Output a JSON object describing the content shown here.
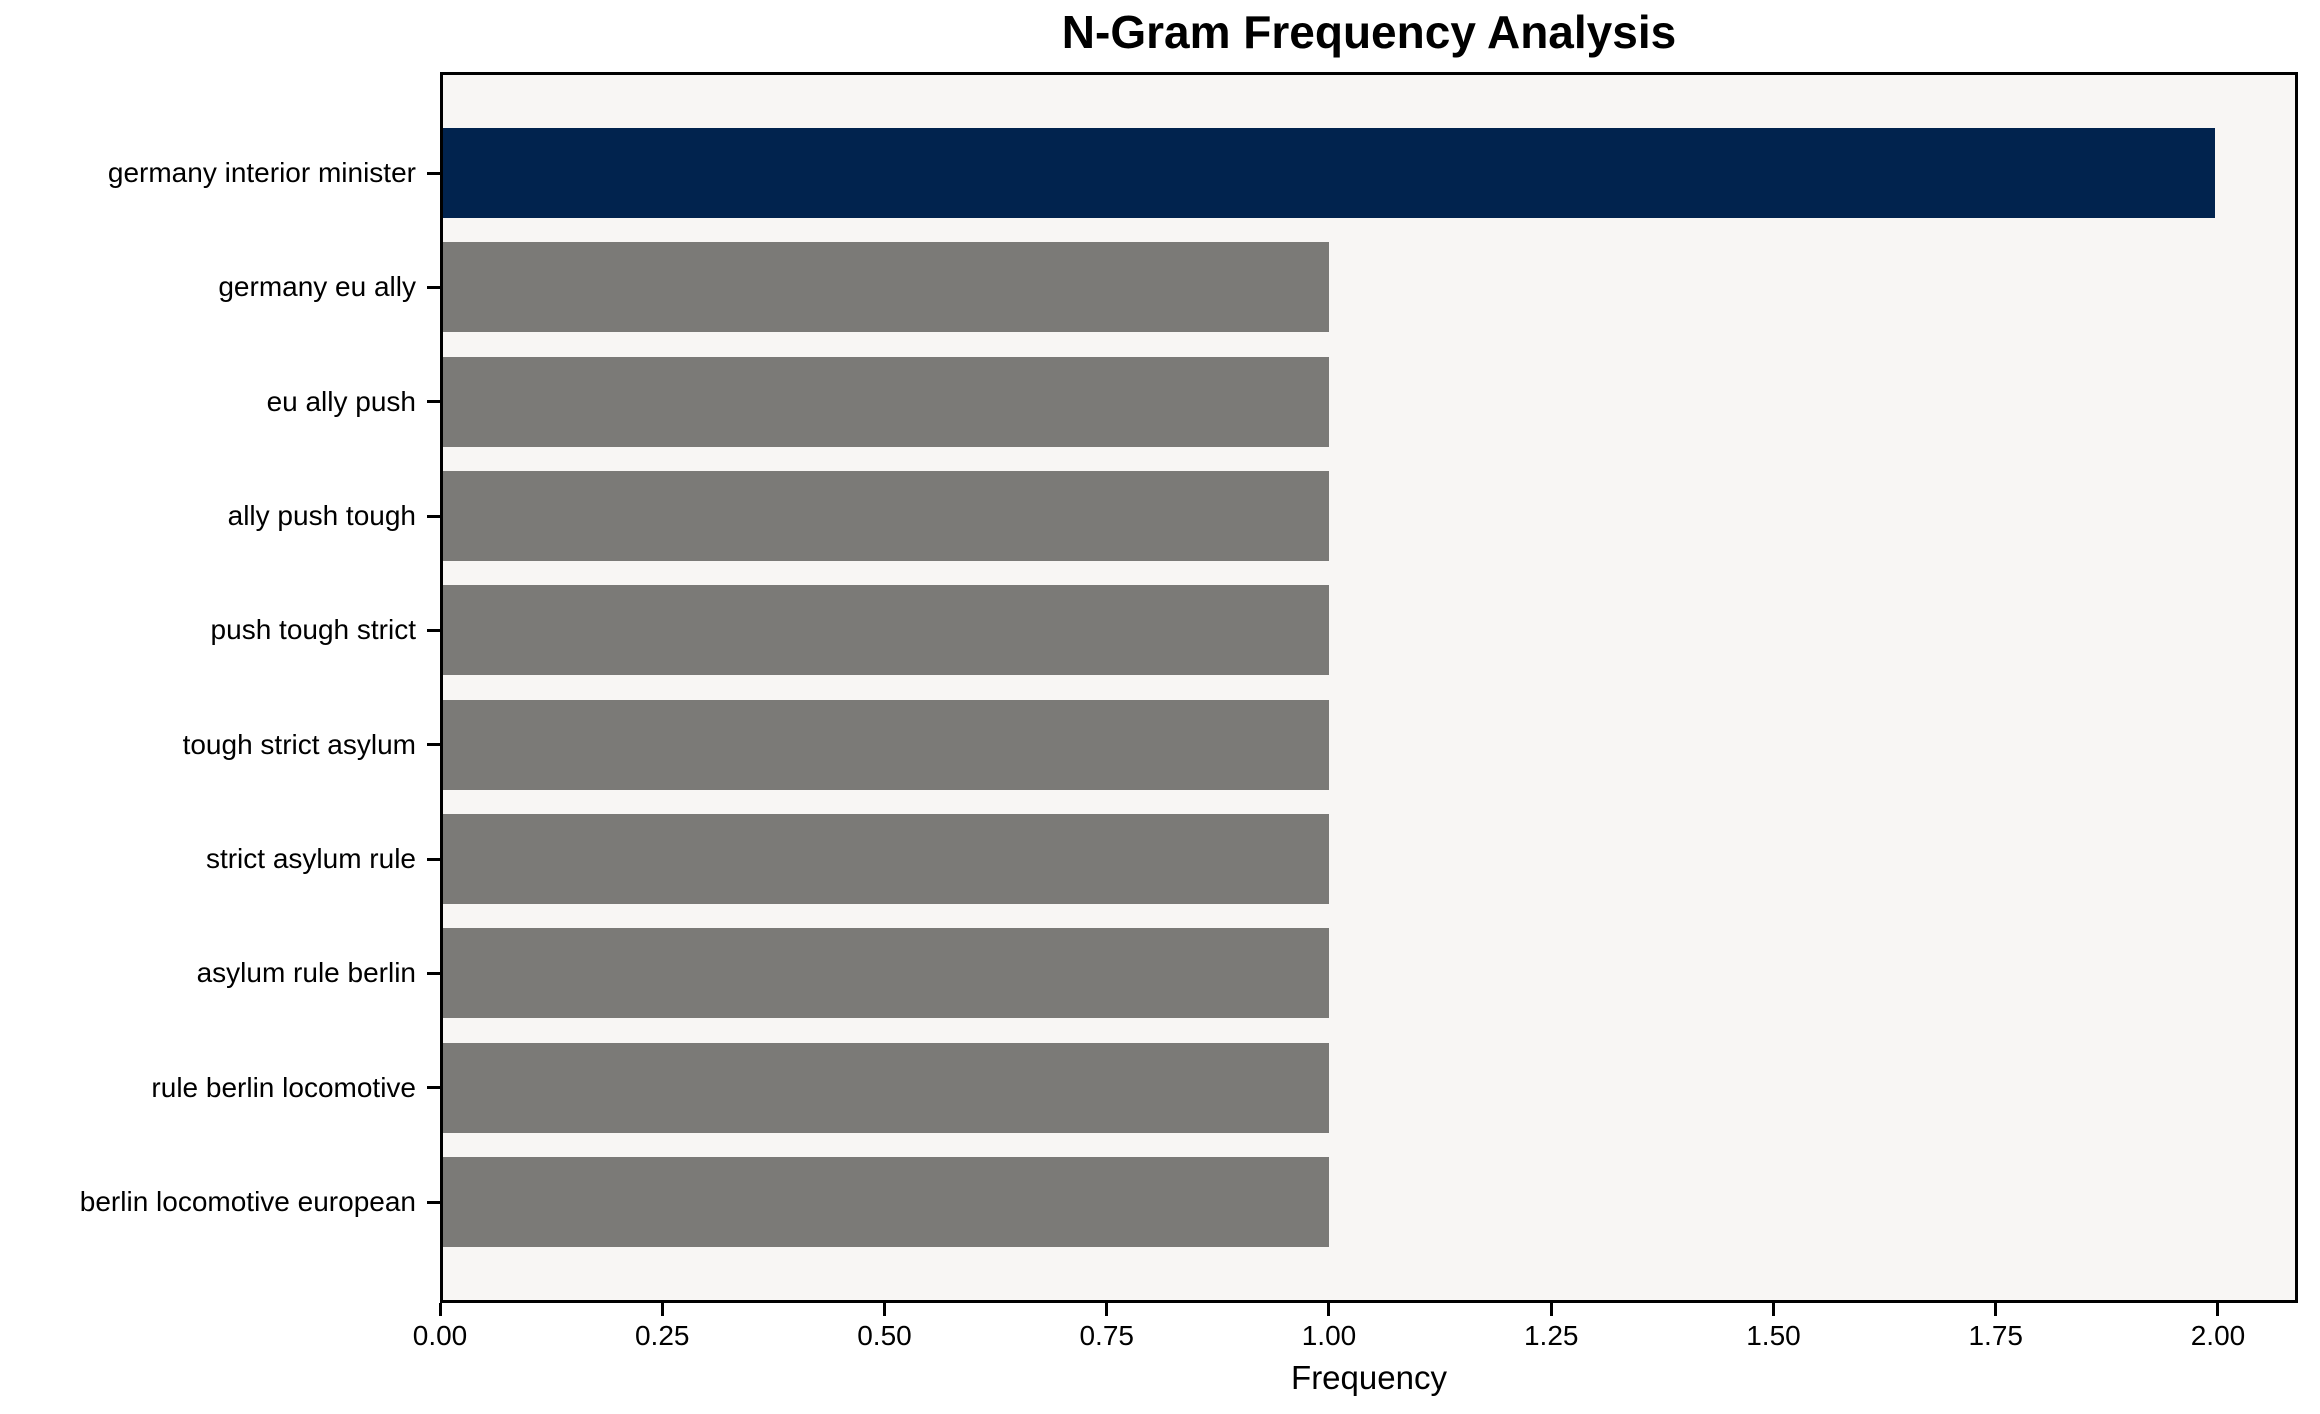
{
  "chart_data": {
    "type": "bar",
    "orientation": "horizontal",
    "title": "N-Gram Frequency Analysis",
    "xlabel": "Frequency",
    "ylabel": "",
    "categories": [
      "germany interior minister",
      "germany eu ally",
      "eu ally push",
      "ally push tough",
      "push tough strict",
      "tough strict asylum",
      "strict asylum rule",
      "asylum rule berlin",
      "rule berlin locomotive",
      "berlin locomotive european"
    ],
    "values": [
      2,
      1,
      1,
      1,
      1,
      1,
      1,
      1,
      1,
      1
    ],
    "xlim": [
      0,
      2.09
    ],
    "xticks": [
      {
        "value": 0.0,
        "label": "0.00"
      },
      {
        "value": 0.25,
        "label": "0.25"
      },
      {
        "value": 0.5,
        "label": "0.50"
      },
      {
        "value": 0.75,
        "label": "0.75"
      },
      {
        "value": 1.0,
        "label": "1.00"
      },
      {
        "value": 1.25,
        "label": "1.25"
      },
      {
        "value": 1.5,
        "label": "1.50"
      },
      {
        "value": 1.75,
        "label": "1.75"
      },
      {
        "value": 2.0,
        "label": "2.00"
      }
    ],
    "grid": false,
    "legend": null,
    "colors": {
      "highlight_bar": "#01234e",
      "default_bar": "#7b7a77",
      "plot_background": "#f8f6f4",
      "figure_background": "#ffffff",
      "frame": "#000000",
      "text": "#000000"
    },
    "bar_colors": [
      "#01234e",
      "#7b7a77",
      "#7b7a77",
      "#7b7a77",
      "#7b7a77",
      "#7b7a77",
      "#7b7a77",
      "#7b7a77",
      "#7b7a77",
      "#7b7a77"
    ]
  }
}
